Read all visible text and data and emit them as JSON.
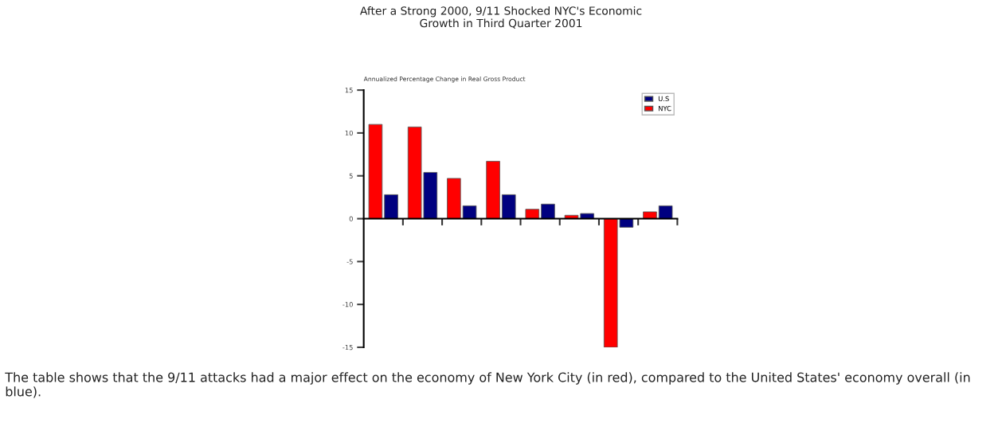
{
  "chart_data": {
    "type": "bar",
    "title": "After a Strong 2000, 9/11 Shocked NYC's Economic\nGrowth in Third Quarter 2001",
    "ylabel": "Annualized Percentage Change in Real Gross Product",
    "categories": [
      null,
      null,
      null,
      null,
      null,
      null,
      null,
      null
    ],
    "series": [
      {
        "name": "U.S",
        "color": "#000080",
        "values": [
          2.8,
          5.4,
          1.5,
          2.8,
          1.7,
          0.6,
          -1.0,
          1.5
        ]
      },
      {
        "name": "NYC",
        "color": "#ff0000",
        "values": [
          11.0,
          10.7,
          4.7,
          6.7,
          1.1,
          0.4,
          -15.0,
          0.8
        ]
      }
    ],
    "ylim": [
      -15,
      15
    ],
    "yticks": [
      -15,
      -10,
      -5,
      0,
      5,
      10,
      15
    ],
    "legend": "top right",
    "annotations": [
      "The table shows that the 9/11 attacks had a major effect on the economy of New York City (in red), compared to the United States' economy overall (in blue)."
    ]
  }
}
